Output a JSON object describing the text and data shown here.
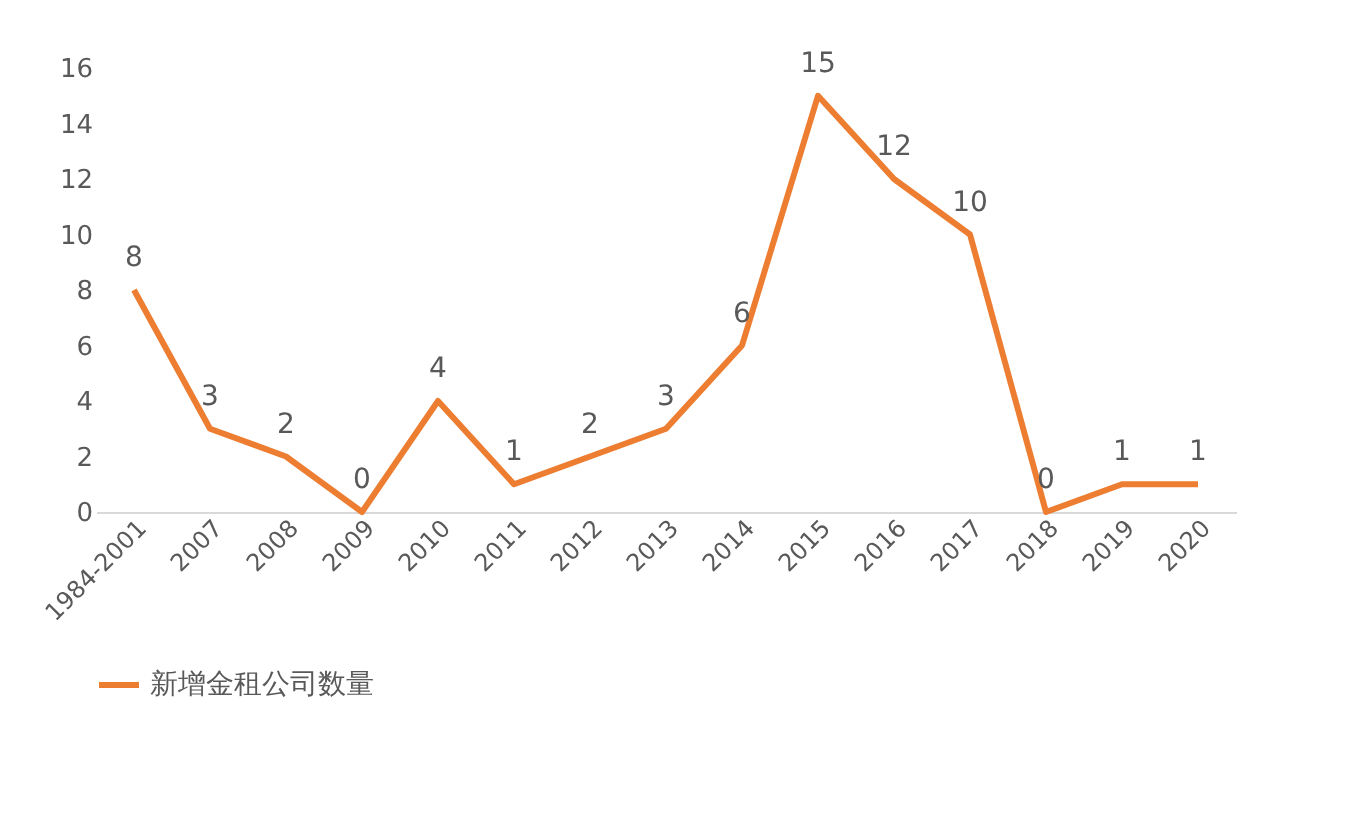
{
  "chart_data": {
    "type": "line",
    "categories": [
      "1984-2001",
      "2007",
      "2008",
      "2009",
      "2010",
      "2011",
      "2012",
      "2013",
      "2014",
      "2015",
      "2016",
      "2017",
      "2018",
      "2019",
      "2020"
    ],
    "series": [
      {
        "name": "新增金租公司数量",
        "color": "#ed7d31",
        "values": [
          8,
          3,
          2,
          0,
          4,
          1,
          2,
          3,
          6,
          15,
          12,
          10,
          0,
          1,
          1
        ]
      }
    ],
    "ylim": [
      0,
      16
    ],
    "yticks": [
      0,
      2,
      4,
      6,
      8,
      10,
      12,
      14,
      16
    ],
    "grid": false,
    "legend": "bottom",
    "data_labels": true,
    "marker": "none",
    "line_style": "solid"
  }
}
